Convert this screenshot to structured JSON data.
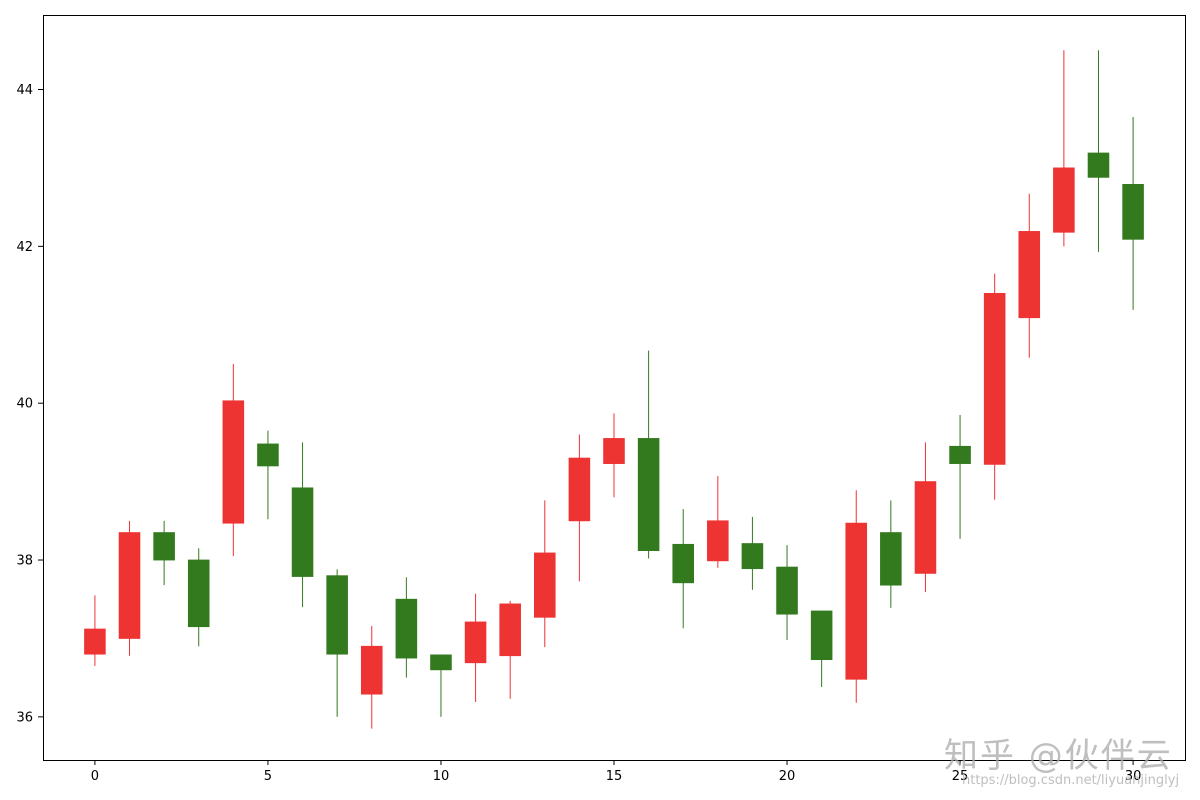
{
  "chart_data": {
    "type": "candlestick",
    "title": "",
    "xlabel": "",
    "ylabel": "",
    "xlim": [
      -1.5,
      31.5
    ],
    "ylim": [
      35.45,
      44.95
    ],
    "xticks": [
      0,
      5,
      10,
      15,
      20,
      25,
      30
    ],
    "yticks": [
      36,
      38,
      40,
      42,
      44
    ],
    "grid": false,
    "colors": {
      "up": "#ee3333",
      "down": "#337a1e"
    },
    "candles": [
      {
        "x": 0,
        "open": 36.8,
        "close": 37.12,
        "high": 37.55,
        "low": 36.65
      },
      {
        "x": 1,
        "open": 37.0,
        "close": 38.35,
        "high": 38.5,
        "low": 36.78
      },
      {
        "x": 2,
        "open": 38.35,
        "close": 38.0,
        "high": 38.5,
        "low": 37.68
      },
      {
        "x": 3,
        "open": 38.0,
        "close": 37.15,
        "high": 38.15,
        "low": 36.9
      },
      {
        "x": 4,
        "open": 38.47,
        "close": 40.03,
        "high": 40.5,
        "low": 38.05
      },
      {
        "x": 5,
        "open": 39.48,
        "close": 39.2,
        "high": 39.65,
        "low": 38.52
      },
      {
        "x": 6,
        "open": 38.92,
        "close": 37.79,
        "high": 39.5,
        "low": 37.4
      },
      {
        "x": 7,
        "open": 37.8,
        "close": 36.8,
        "high": 37.88,
        "low": 36.0
      },
      {
        "x": 8,
        "open": 36.29,
        "close": 36.9,
        "high": 37.16,
        "low": 35.85
      },
      {
        "x": 9,
        "open": 37.5,
        "close": 36.75,
        "high": 37.78,
        "low": 36.5
      },
      {
        "x": 10,
        "open": 36.79,
        "close": 36.6,
        "high": 36.79,
        "low": 36.0
      },
      {
        "x": 11,
        "open": 36.69,
        "close": 37.21,
        "high": 37.57,
        "low": 36.19
      },
      {
        "x": 12,
        "open": 36.78,
        "close": 37.44,
        "high": 37.48,
        "low": 36.23
      },
      {
        "x": 13,
        "open": 37.27,
        "close": 38.09,
        "high": 38.76,
        "low": 36.89
      },
      {
        "x": 14,
        "open": 38.5,
        "close": 39.3,
        "high": 39.6,
        "low": 37.73
      },
      {
        "x": 15,
        "open": 39.23,
        "close": 39.55,
        "high": 39.87,
        "low": 38.8
      },
      {
        "x": 16,
        "open": 39.55,
        "close": 38.12,
        "high": 40.67,
        "low": 38.02
      },
      {
        "x": 17,
        "open": 38.2,
        "close": 37.71,
        "high": 38.65,
        "low": 37.13
      },
      {
        "x": 18,
        "open": 37.99,
        "close": 38.5,
        "high": 39.07,
        "low": 37.9
      },
      {
        "x": 19,
        "open": 38.21,
        "close": 37.89,
        "high": 38.55,
        "low": 37.62
      },
      {
        "x": 20,
        "open": 37.91,
        "close": 37.31,
        "high": 38.19,
        "low": 36.98
      },
      {
        "x": 21,
        "open": 37.35,
        "close": 36.73,
        "high": 37.35,
        "low": 36.38
      },
      {
        "x": 22,
        "open": 36.48,
        "close": 38.47,
        "high": 38.89,
        "low": 36.18
      },
      {
        "x": 23,
        "open": 38.35,
        "close": 37.68,
        "high": 38.76,
        "low": 37.39
      },
      {
        "x": 24,
        "open": 37.83,
        "close": 39.0,
        "high": 39.5,
        "low": 37.59
      },
      {
        "x": 25,
        "open": 39.45,
        "close": 39.23,
        "high": 39.85,
        "low": 38.27
      },
      {
        "x": 26,
        "open": 39.22,
        "close": 41.4,
        "high": 41.65,
        "low": 38.77
      },
      {
        "x": 27,
        "open": 41.09,
        "close": 42.19,
        "high": 42.67,
        "low": 40.58
      },
      {
        "x": 28,
        "open": 42.18,
        "close": 43.0,
        "high": 44.5,
        "low": 42.0
      },
      {
        "x": 29,
        "open": 43.19,
        "close": 42.88,
        "high": 44.5,
        "low": 41.93
      },
      {
        "x": 30,
        "open": 42.79,
        "close": 42.09,
        "high": 43.65,
        "low": 41.19
      }
    ]
  },
  "watermark": {
    "text": "知乎 @伙伴云",
    "url": "https://blog.csdn.net/liyuanjinglyj"
  }
}
